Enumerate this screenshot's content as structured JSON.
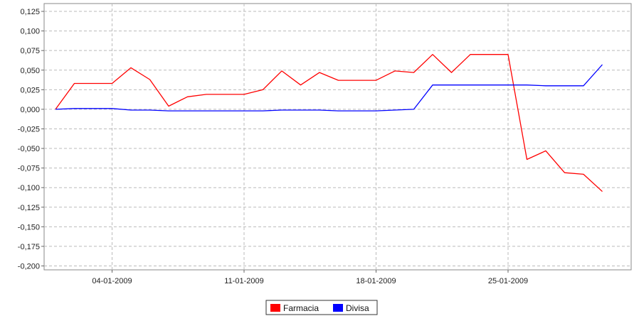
{
  "chart_data": {
    "type": "line",
    "x": [
      "01-01-2009",
      "02-01-2009",
      "03-01-2009",
      "04-01-2009",
      "05-01-2009",
      "06-01-2009",
      "07-01-2009",
      "08-01-2009",
      "09-01-2009",
      "10-01-2009",
      "11-01-2009",
      "12-01-2009",
      "13-01-2009",
      "14-01-2009",
      "15-01-2009",
      "16-01-2009",
      "17-01-2009",
      "18-01-2009",
      "19-01-2009",
      "20-01-2009",
      "21-01-2009",
      "22-01-2009",
      "23-01-2009",
      "24-01-2009",
      "25-01-2009",
      "26-01-2009",
      "27-01-2009",
      "28-01-2009",
      "29-01-2009",
      "30-01-2009"
    ],
    "series": [
      {
        "name": "Farmacia",
        "color": "#ff0000",
        "values": [
          0.0,
          0.033,
          0.033,
          0.033,
          0.053,
          0.038,
          0.004,
          0.016,
          0.019,
          0.019,
          0.019,
          0.025,
          0.049,
          0.031,
          0.047,
          0.037,
          0.037,
          0.037,
          0.049,
          0.047,
          0.07,
          0.047,
          0.07,
          0.07,
          0.07,
          -0.064,
          -0.053,
          -0.081,
          -0.083,
          -0.105
        ]
      },
      {
        "name": "Divisa",
        "color": "#0000ff",
        "values": [
          0.0,
          0.001,
          0.001,
          0.001,
          -0.001,
          -0.001,
          -0.002,
          -0.002,
          -0.002,
          -0.002,
          -0.002,
          -0.002,
          -0.001,
          -0.001,
          -0.001,
          -0.002,
          -0.002,
          -0.002,
          -0.001,
          0.0,
          0.031,
          0.031,
          0.031,
          0.031,
          0.031,
          0.031,
          0.03,
          0.03,
          0.03,
          0.057
        ]
      }
    ],
    "x_ticks": [
      "04-01-2009",
      "11-01-2009",
      "18-01-2009",
      "25-01-2009"
    ],
    "y_ticks": [
      "0,125",
      "0,100",
      "0,075",
      "0,050",
      "0,025",
      "0,000",
      "-0,025",
      "-0,050",
      "-0,075",
      "-0,100",
      "-0,125",
      "-0,150",
      "-0,175",
      "-0,200"
    ],
    "y_tick_values": [
      0.125,
      0.1,
      0.075,
      0.05,
      0.025,
      0,
      -0.025,
      -0.05,
      -0.075,
      -0.1,
      -0.125,
      -0.15,
      -0.175,
      -0.2
    ],
    "ylim": [
      -0.205,
      0.135
    ],
    "grid": true,
    "legend_position": "bottom-center"
  }
}
